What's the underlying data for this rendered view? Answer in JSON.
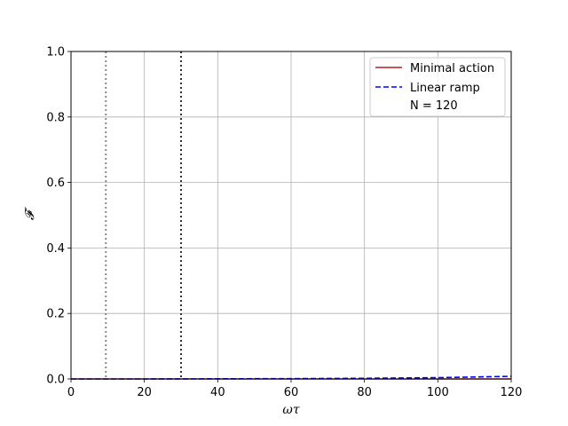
{
  "chart_data": {
    "type": "line",
    "title": "",
    "xlabel": "ωτ",
    "ylabel": "𝓕",
    "xlim": [
      0,
      120
    ],
    "ylim": [
      0,
      1
    ],
    "x_ticks": [
      0,
      20,
      40,
      60,
      80,
      100,
      120
    ],
    "y_ticks": [
      0.0,
      0.2,
      0.4,
      0.6,
      0.8,
      1.0
    ],
    "x_tick_labels": [
      "0",
      "20",
      "40",
      "60",
      "80",
      "100",
      "120"
    ],
    "y_tick_labels": [
      "0.0",
      "0.2",
      "0.4",
      "0.6",
      "0.8",
      "1.0"
    ],
    "grid": true,
    "legend_position": "top-right",
    "series": [
      {
        "name": "Minimal action",
        "color": "#b22222",
        "style": "solid",
        "x": [
          0,
          20,
          40,
          60,
          80,
          100,
          120
        ],
        "y": [
          0,
          0,
          0,
          0,
          0,
          0,
          0
        ]
      },
      {
        "name": "Linear ramp",
        "color": "#0000ff",
        "style": "dashed",
        "x": [
          0,
          20,
          40,
          60,
          80,
          90,
          100,
          110,
          120
        ],
        "y": [
          0,
          0,
          0.0005,
          0.001,
          0.002,
          0.003,
          0.004,
          0.006,
          0.008
        ]
      }
    ],
    "vertical_lines": [
      {
        "x": 9.5,
        "color": "#888888",
        "style": "dotted"
      },
      {
        "x": 30,
        "color": "#333333",
        "style": "dotted"
      }
    ],
    "legend_note": "N = 120"
  }
}
